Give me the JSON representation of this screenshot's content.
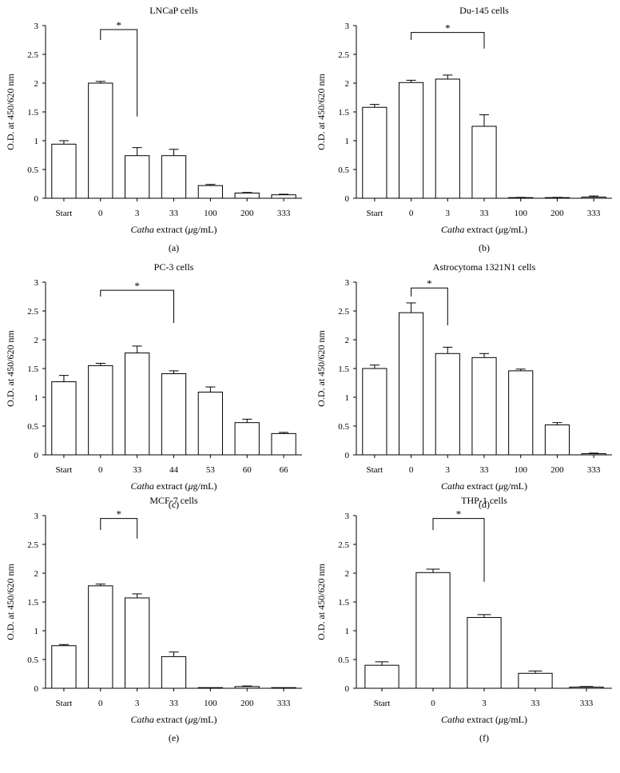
{
  "xlabel_parts": {
    "italic": "Catha",
    "rest": " extract (",
    "mu": "μ",
    "unit": "g/mL)"
  },
  "chart_data": [
    {
      "type": "bar",
      "title": "LNCaP cells",
      "panel": "(a)",
      "ylabel": "O.D. at 450/620 nm",
      "ylim": [
        0,
        3
      ],
      "yticks": [
        "0",
        "0.5",
        "1",
        "1.5",
        "2",
        "2.5",
        "3"
      ],
      "categories": [
        "Start",
        "0",
        "3",
        "33",
        "100",
        "200",
        "333"
      ],
      "values": [
        0.94,
        2.0,
        0.74,
        0.74,
        0.22,
        0.09,
        0.06
      ],
      "errors": [
        0.06,
        0.03,
        0.14,
        0.11,
        0.02,
        0.01,
        0.01
      ],
      "significance": {
        "from": 1,
        "to": 2,
        "label": "*",
        "y": 2.93,
        "drop_to": 1.42
      }
    },
    {
      "type": "bar",
      "title": "Du-145 cells",
      "panel": "(b)",
      "ylabel": "O.D. at 450/620 nm",
      "ylim": [
        0,
        3
      ],
      "yticks": [
        "0",
        "0.5",
        "1",
        "1.5",
        "2",
        "2.5",
        "3"
      ],
      "categories": [
        "Start",
        "0",
        "3",
        "33",
        "100",
        "200",
        "333"
      ],
      "values": [
        1.58,
        2.01,
        2.07,
        1.25,
        0.01,
        0.01,
        0.02
      ],
      "errors": [
        0.05,
        0.04,
        0.07,
        0.2,
        0.005,
        0.005,
        0.02
      ],
      "significance": {
        "from": 1,
        "to": 3,
        "label": "*",
        "y": 2.88,
        "drop_to": 2.6
      }
    },
    {
      "type": "bar",
      "title": "PC-3 cells",
      "panel": "(c)",
      "ylabel": "O.D. at 450/620 nm",
      "ylim": [
        0,
        3
      ],
      "yticks": [
        "0",
        "0.5",
        "1",
        "1.5",
        "2",
        "2.5",
        "3"
      ],
      "categories": [
        "Start",
        "0",
        "33",
        "44",
        "53",
        "60",
        "66"
      ],
      "values": [
        1.27,
        1.55,
        1.77,
        1.41,
        1.09,
        0.56,
        0.37
      ],
      "errors": [
        0.11,
        0.04,
        0.12,
        0.05,
        0.09,
        0.06,
        0.02
      ],
      "significance": {
        "from": 1,
        "to": 3,
        "label": "*",
        "y": 2.86,
        "drop_to": 2.29
      }
    },
    {
      "type": "bar",
      "title": "Astrocytoma 1321N1 cells",
      "panel": "(d)",
      "ylabel": "O.D. at 450/620 nm",
      "ylim": [
        0,
        3
      ],
      "yticks": [
        "0",
        "0.5",
        "1",
        "1.5",
        "2",
        "2.5",
        "3"
      ],
      "categories": [
        "Start",
        "0",
        "3",
        "33",
        "100",
        "200",
        "333"
      ],
      "values": [
        1.5,
        2.47,
        1.76,
        1.69,
        1.46,
        0.52,
        0.02
      ],
      "errors": [
        0.06,
        0.17,
        0.11,
        0.07,
        0.03,
        0.04,
        0.01
      ],
      "significance": {
        "from": 1,
        "to": 2,
        "label": "*",
        "y": 2.9,
        "drop_to": 2.25
      }
    },
    {
      "type": "bar",
      "title": "MCF-7 cells",
      "panel": "(e)",
      "ylabel": "O.D. at 450/620 nm",
      "ylim": [
        0,
        3
      ],
      "yticks": [
        "0",
        "0.5",
        "1",
        "1.5",
        "2",
        "2.5",
        "3"
      ],
      "categories": [
        "Start",
        "0",
        "3",
        "33",
        "100",
        "200",
        "333"
      ],
      "values": [
        0.74,
        1.78,
        1.57,
        0.55,
        0.0,
        0.03,
        0.0
      ],
      "errors": [
        0.02,
        0.03,
        0.07,
        0.08,
        0.0,
        0.01,
        0.0
      ],
      "significance": {
        "from": 1,
        "to": 2,
        "label": "*",
        "y": 2.95,
        "drop_to": 2.6
      }
    },
    {
      "type": "bar",
      "title": "THP-1 cells",
      "panel": "(f)",
      "ylabel": "O.D. at 450/620 nm",
      "ylim": [
        0,
        3
      ],
      "yticks": [
        "0",
        "0.5",
        "1",
        "1.5",
        "2",
        "2.5",
        "3"
      ],
      "categories": [
        "Start",
        "0",
        "3",
        "33",
        "333"
      ],
      "values": [
        0.4,
        2.01,
        1.23,
        0.26,
        0.02
      ],
      "errors": [
        0.06,
        0.06,
        0.05,
        0.04,
        0.01
      ],
      "significance": {
        "from": 1,
        "to": 2,
        "label": "*",
        "y": 2.95,
        "drop_to": 1.85
      }
    }
  ]
}
